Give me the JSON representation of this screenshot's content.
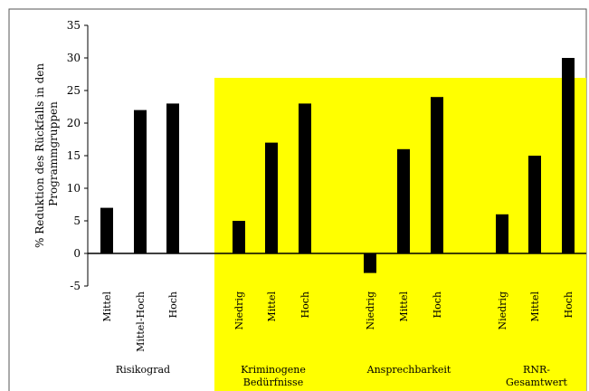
{
  "chart_data": {
    "type": "bar",
    "title": "",
    "xlabel": "",
    "ylabel_lines": [
      "% Reduktion des Rückfalls in den",
      "Programmgruppen"
    ],
    "ylim": [
      -5,
      35
    ],
    "yticks": [
      -5,
      0,
      5,
      10,
      15,
      20,
      25,
      30,
      35
    ],
    "highlight_color": "#ffff00",
    "bar_color": "#000000",
    "groups": [
      {
        "label_lines": [
          "Risikograd"
        ],
        "highlighted": false,
        "categories": [
          "Mittel",
          "Mittel-Hoch",
          "Hoch"
        ],
        "values": [
          7,
          22,
          23
        ]
      },
      {
        "label_lines": [
          "Kriminogene",
          "Bedürfnisse"
        ],
        "highlighted": true,
        "categories": [
          "Niedrig",
          "Mittel",
          "Hoch"
        ],
        "values": [
          5,
          17,
          23
        ]
      },
      {
        "label_lines": [
          "Ansprechbarkeit"
        ],
        "highlighted": true,
        "categories": [
          "Niedrig",
          "Mittel",
          "Hoch"
        ],
        "values": [
          -3,
          16,
          24
        ]
      },
      {
        "label_lines": [
          "RNR-",
          "Gesamtwert"
        ],
        "highlighted": true,
        "categories": [
          "Niedrig",
          "Mittel",
          "Hoch"
        ],
        "values": [
          6,
          15,
          30
        ]
      }
    ]
  }
}
